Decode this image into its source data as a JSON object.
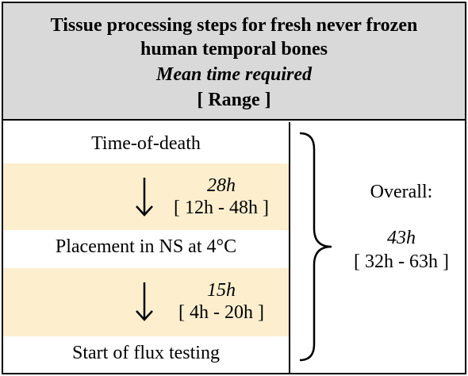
{
  "header": {
    "title_line1": "Tissue processing steps for fresh never frozen",
    "title_line2": "human temporal bones",
    "subtitle": "Mean time required",
    "range_label": "[ Range ]"
  },
  "steps": [
    {
      "label": "Time-of-death"
    },
    {
      "label": "Placement in NS at 4°C"
    },
    {
      "label": "Start of flux testing"
    }
  ],
  "intervals": [
    {
      "mean": "28h",
      "range": "[ 12h - 48h ]"
    },
    {
      "mean": "15h",
      "range": "[ 4h - 20h ]"
    }
  ],
  "overall": {
    "label": "Overall:",
    "mean": "43h",
    "range": "[ 32h - 63h ]"
  },
  "colors": {
    "header_bg": "#d9d9d9",
    "interval_band": "#fdefce",
    "border": "#000000"
  },
  "icons": {
    "interval_arrow": "down-arrow-icon",
    "overall_brace": "right-curly-brace-icon"
  }
}
